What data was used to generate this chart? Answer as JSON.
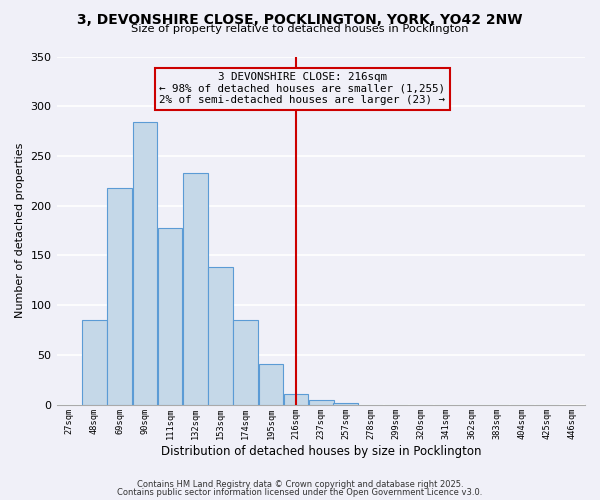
{
  "title": "3, DEVONSHIRE CLOSE, POCKLINGTON, YORK, YO42 2NW",
  "subtitle": "Size of property relative to detached houses in Pocklington",
  "xlabel": "Distribution of detached houses by size in Pocklington",
  "ylabel": "Number of detached properties",
  "bin_labels": [
    "27sqm",
    "48sqm",
    "69sqm",
    "90sqm",
    "111sqm",
    "132sqm",
    "153sqm",
    "174sqm",
    "195sqm",
    "216sqm",
    "237sqm",
    "257sqm",
    "278sqm",
    "299sqm",
    "320sqm",
    "341sqm",
    "362sqm",
    "383sqm",
    "404sqm",
    "425sqm",
    "446sqm"
  ],
  "bin_edges": [
    27,
    48,
    69,
    90,
    111,
    132,
    153,
    174,
    195,
    216,
    237,
    257,
    278,
    299,
    320,
    341,
    362,
    383,
    404,
    425,
    446
  ],
  "bar_heights": [
    0,
    85,
    218,
    284,
    178,
    233,
    138,
    85,
    41,
    11,
    5,
    2,
    0,
    0,
    0,
    0,
    0,
    0,
    0,
    0
  ],
  "bar_color": "#c5d8e8",
  "bar_edge_color": "#5b9bd5",
  "vline_x": 216,
  "vline_color": "#cc0000",
  "annotation_box_title": "3 DEVONSHIRE CLOSE: 216sqm",
  "annotation_line1": "← 98% of detached houses are smaller (1,255)",
  "annotation_line2": "2% of semi-detached houses are larger (23) →",
  "annotation_box_color": "#cc0000",
  "ylim": [
    0,
    350
  ],
  "yticks": [
    0,
    50,
    100,
    150,
    200,
    250,
    300,
    350
  ],
  "bg_color": "#f0f0f8",
  "grid_color": "#ffffff",
  "footer_line1": "Contains HM Land Registry data © Crown copyright and database right 2025.",
  "footer_line2": "Contains public sector information licensed under the Open Government Licence v3.0."
}
